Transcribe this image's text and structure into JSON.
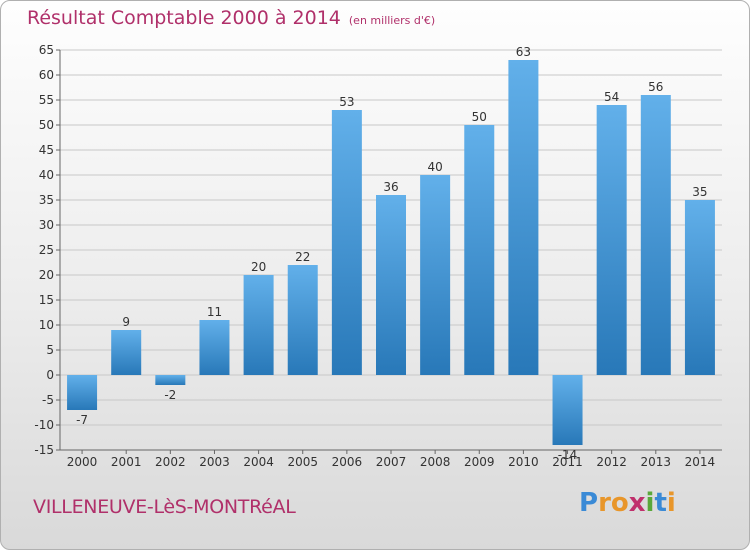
{
  "header": {
    "title": "Résultat Comptable 2000 à 2014",
    "unit": "(en milliers d'€)"
  },
  "footer": {
    "commune": "VILLENEUVE-LèS-MONTRéAL",
    "logo_letters": [
      "P",
      "r",
      "o",
      "x",
      "i",
      "t",
      "i"
    ],
    "logo_colors": [
      "#3a8ad6",
      "#e8962a",
      "#e8962a",
      "#c0306c",
      "#5aa83a",
      "#3a8ad6",
      "#e8962a"
    ]
  },
  "chart_data": {
    "type": "bar",
    "title": "Résultat Comptable 2000 à 2014",
    "categories": [
      "2000",
      "2001",
      "2002",
      "2003",
      "2004",
      "2005",
      "2006",
      "2007",
      "2008",
      "2009",
      "2010",
      "2011",
      "2012",
      "2013",
      "2014"
    ],
    "values": [
      -7,
      9,
      -2,
      11,
      20,
      22,
      53,
      36,
      40,
      50,
      63,
      -14,
      54,
      56,
      35
    ],
    "data_labels": [
      "-7",
      "9",
      "-2",
      "11",
      "20",
      "22",
      "53",
      "36",
      "40",
      "50",
      "63",
      "-14",
      "54",
      "56",
      "35"
    ],
    "yticks": [
      "-15",
      "-10",
      "-5",
      "0",
      "5",
      "10",
      "15",
      "20",
      "25",
      "30",
      "35",
      "40",
      "45",
      "50",
      "55",
      "60",
      "65"
    ],
    "ylim": [
      -15,
      65
    ],
    "grid": true,
    "colors": {
      "bar": "#4a9ad8",
      "bar_light": "#62b0ea",
      "bar_dark": "#2878b8",
      "grid": "#c8c8c8",
      "axis": "#666666",
      "text": "#333333"
    }
  }
}
